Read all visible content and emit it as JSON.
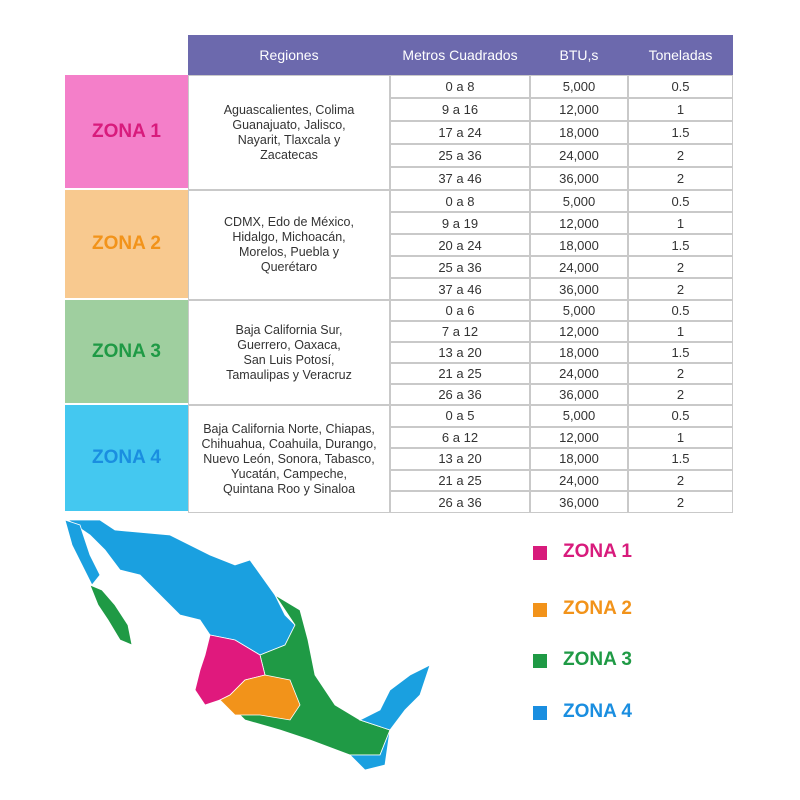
{
  "header": [
    "Regiones",
    "Metros Cuadrados",
    "BTU,s",
    "Toneladas"
  ],
  "zones": [
    {
      "name": "ZONA 1",
      "regions": [
        "Aguascalientes, Colima",
        "Guanajuato, Jalisco,",
        "Nayarit, Tlaxcala y",
        "Zacatecas"
      ],
      "rows": [
        [
          "0 a 8",
          "5,000",
          "0.5"
        ],
        [
          "9 a 16",
          "12,000",
          "1"
        ],
        [
          "17 a 24",
          "18,000",
          "1.5"
        ],
        [
          "25 a 36",
          "24,000",
          "2"
        ],
        [
          "37 a 46",
          "36,000",
          "2"
        ]
      ]
    },
    {
      "name": "ZONA 2",
      "regions": [
        "CDMX, Edo de México,",
        "Hidalgo, Michoacán,",
        "Morelos, Puebla y",
        "Querétaro"
      ],
      "rows": [
        [
          "0 a 8",
          "5,000",
          "0.5"
        ],
        [
          "9 a 19",
          "12,000",
          "1"
        ],
        [
          "20 a 24",
          "18,000",
          "1.5"
        ],
        [
          "25 a 36",
          "24,000",
          "2"
        ],
        [
          "37 a 46",
          "36,000",
          "2"
        ]
      ]
    },
    {
      "name": "ZONA 3",
      "regions": [
        "Baja California Sur,",
        "Guerrero, Oaxaca,",
        "San Luis Potosí,",
        "Tamaulipas y Veracruz"
      ],
      "rows": [
        [
          "0 a 6",
          "5,000",
          "0.5"
        ],
        [
          "7 a 12",
          "12,000",
          "1"
        ],
        [
          "13 a 20",
          "18,000",
          "1.5"
        ],
        [
          "21 a 25",
          "24,000",
          "2"
        ],
        [
          "26 a 36",
          "36,000",
          "2"
        ]
      ]
    },
    {
      "name": "ZONA 4",
      "regions": [
        "Baja California Norte, Chiapas,",
        "Chihuahua, Coahuila, Durango,",
        "Nuevo León, Sonora, Tabasco,",
        "Yucatán, Campeche,",
        "Quintana Roo y Sinaloa"
      ],
      "rows": [
        [
          "0 a 5",
          "5,000",
          "0.5"
        ],
        [
          "6 a 12",
          "12,000",
          "1"
        ],
        [
          "13 a 20",
          "18,000",
          "1.5"
        ],
        [
          "21 a 25",
          "24,000",
          "2"
        ],
        [
          "26 a 36",
          "36,000",
          "2"
        ]
      ]
    }
  ],
  "legend": [
    "ZONA 1",
    "ZONA 2",
    "ZONA 3",
    "ZONA 4"
  ]
}
